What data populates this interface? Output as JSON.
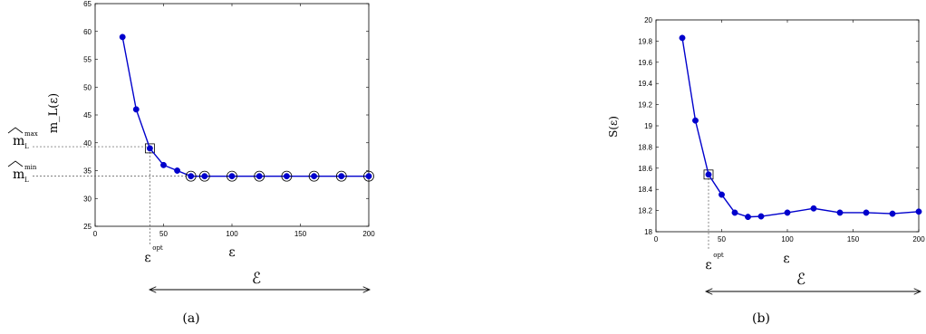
{
  "chart_data": [
    {
      "type": "line",
      "caption": "(a)",
      "ylabel": "m_L(ε)",
      "xlabel": "ε",
      "xlim": [
        0,
        200
      ],
      "ylim": [
        25,
        65
      ],
      "xticks": [
        0,
        50,
        100,
        150,
        200
      ],
      "yticks": [
        25,
        30,
        35,
        40,
        45,
        50,
        55,
        60,
        65
      ],
      "grid": false,
      "color": "#0000cc",
      "series": [
        {
          "x": [
            20,
            30,
            40,
            50,
            60,
            70,
            80,
            100,
            120,
            140,
            160,
            180,
            200
          ],
          "y": [
            59,
            46,
            39,
            36,
            35,
            34,
            34,
            34,
            34,
            34,
            34,
            34,
            34
          ]
        }
      ],
      "circled_points_x": [
        70,
        80,
        100,
        120,
        140,
        160,
        180,
        200
      ],
      "annotations": {
        "opt_x": 40,
        "opt_label": "ε",
        "opt_sup": "opt",
        "max_y": 39.3,
        "max_label": "m",
        "max_sub": "L",
        "max_sup": "max",
        "min_y": 34,
        "min_label": "m",
        "min_sub": "L",
        "min_sup": "min",
        "range_label": "ℰ"
      }
    },
    {
      "type": "line",
      "caption": "(b)",
      "ylabel": "S(ε)",
      "xlabel": "ε",
      "xlim": [
        0,
        200
      ],
      "ylim": [
        18,
        20
      ],
      "xticks": [
        0,
        50,
        100,
        150,
        200
      ],
      "yticks": [
        18,
        18.2,
        18.4,
        18.6,
        18.8,
        19,
        19.2,
        19.4,
        19.6,
        19.8,
        20
      ],
      "grid": false,
      "color": "#0000cc",
      "series": [
        {
          "x": [
            20,
            30,
            40,
            50,
            60,
            70,
            80,
            100,
            120,
            140,
            160,
            180,
            200
          ],
          "y": [
            19.83,
            19.05,
            18.54,
            18.35,
            18.18,
            18.14,
            18.145,
            18.18,
            18.22,
            18.18,
            18.18,
            18.17,
            18.19
          ]
        }
      ],
      "annotations": {
        "opt_x": 40,
        "opt_label": "ε",
        "opt_sup": "opt",
        "range_label": "ℰ"
      }
    }
  ]
}
